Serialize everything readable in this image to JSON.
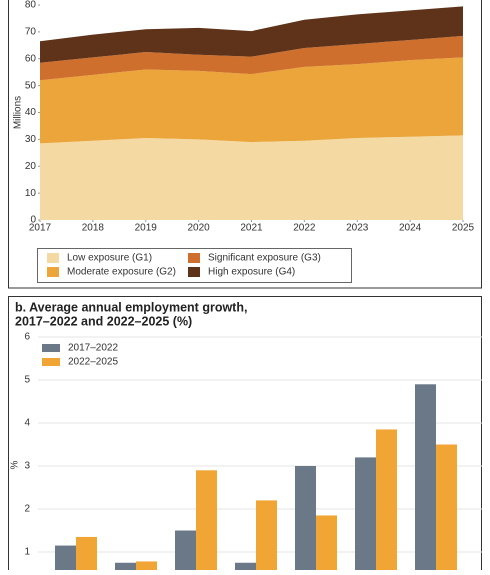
{
  "chart_data": [
    {
      "type": "area",
      "stacked": true,
      "y_label": "Millions",
      "x": [
        2017,
        2018,
        2019,
        2020,
        2021,
        2022,
        2023,
        2024,
        2025
      ],
      "xlim": [
        2017,
        2025
      ],
      "xticks": [
        2017,
        2018,
        2019,
        2020,
        2021,
        2022,
        2023,
        2024,
        2025
      ],
      "ylim": [
        0,
        80
      ],
      "yticks": [
        0,
        10,
        20,
        30,
        40,
        50,
        60,
        70,
        80
      ],
      "series": [
        {
          "name": "Low exposure (G1)",
          "color": "#f5d9a2",
          "values": [
            28.5,
            29.5,
            30.5,
            30,
            29,
            29.5,
            30.5,
            31,
            31.5
          ]
        },
        {
          "name": "Moderate exposure (G2)",
          "color": "#eba53a",
          "values": [
            23.5,
            24.5,
            25.5,
            25.5,
            25.3,
            27.5,
            27.5,
            28.5,
            29
          ]
        },
        {
          "name": "Significant exposure (G3)",
          "color": "#cf6f2e",
          "values": [
            6.5,
            6.5,
            6.5,
            6,
            6.5,
            7,
            7.5,
            7.5,
            8
          ]
        },
        {
          "name": "High exposure (G4)",
          "color": "#5e3319",
          "values": [
            8,
            8.5,
            8.5,
            10,
            9.5,
            10.5,
            11,
            11,
            11
          ]
        }
      ]
    },
    {
      "type": "bar",
      "title": [
        "b. Average annual employment growth,",
        "2017–2022 and 2022–2025 (%)"
      ],
      "y_label": "%",
      "grid": true,
      "categories": [
        null,
        null,
        null,
        null,
        null,
        null,
        null
      ],
      "ylim": [
        0,
        6
      ],
      "yticks": [
        1,
        2,
        3,
        4,
        5,
        6
      ],
      "series": [
        {
          "name": "2017–2022",
          "color": "#6b7888",
          "values": [
            1.15,
            0.75,
            1.5,
            0.75,
            3.0,
            3.2,
            4.9
          ]
        },
        {
          "name": "2022–2025",
          "color": "#f0a535",
          "values": [
            1.35,
            0.78,
            2.9,
            2.2,
            1.85,
            3.85,
            3.5
          ]
        }
      ]
    }
  ]
}
